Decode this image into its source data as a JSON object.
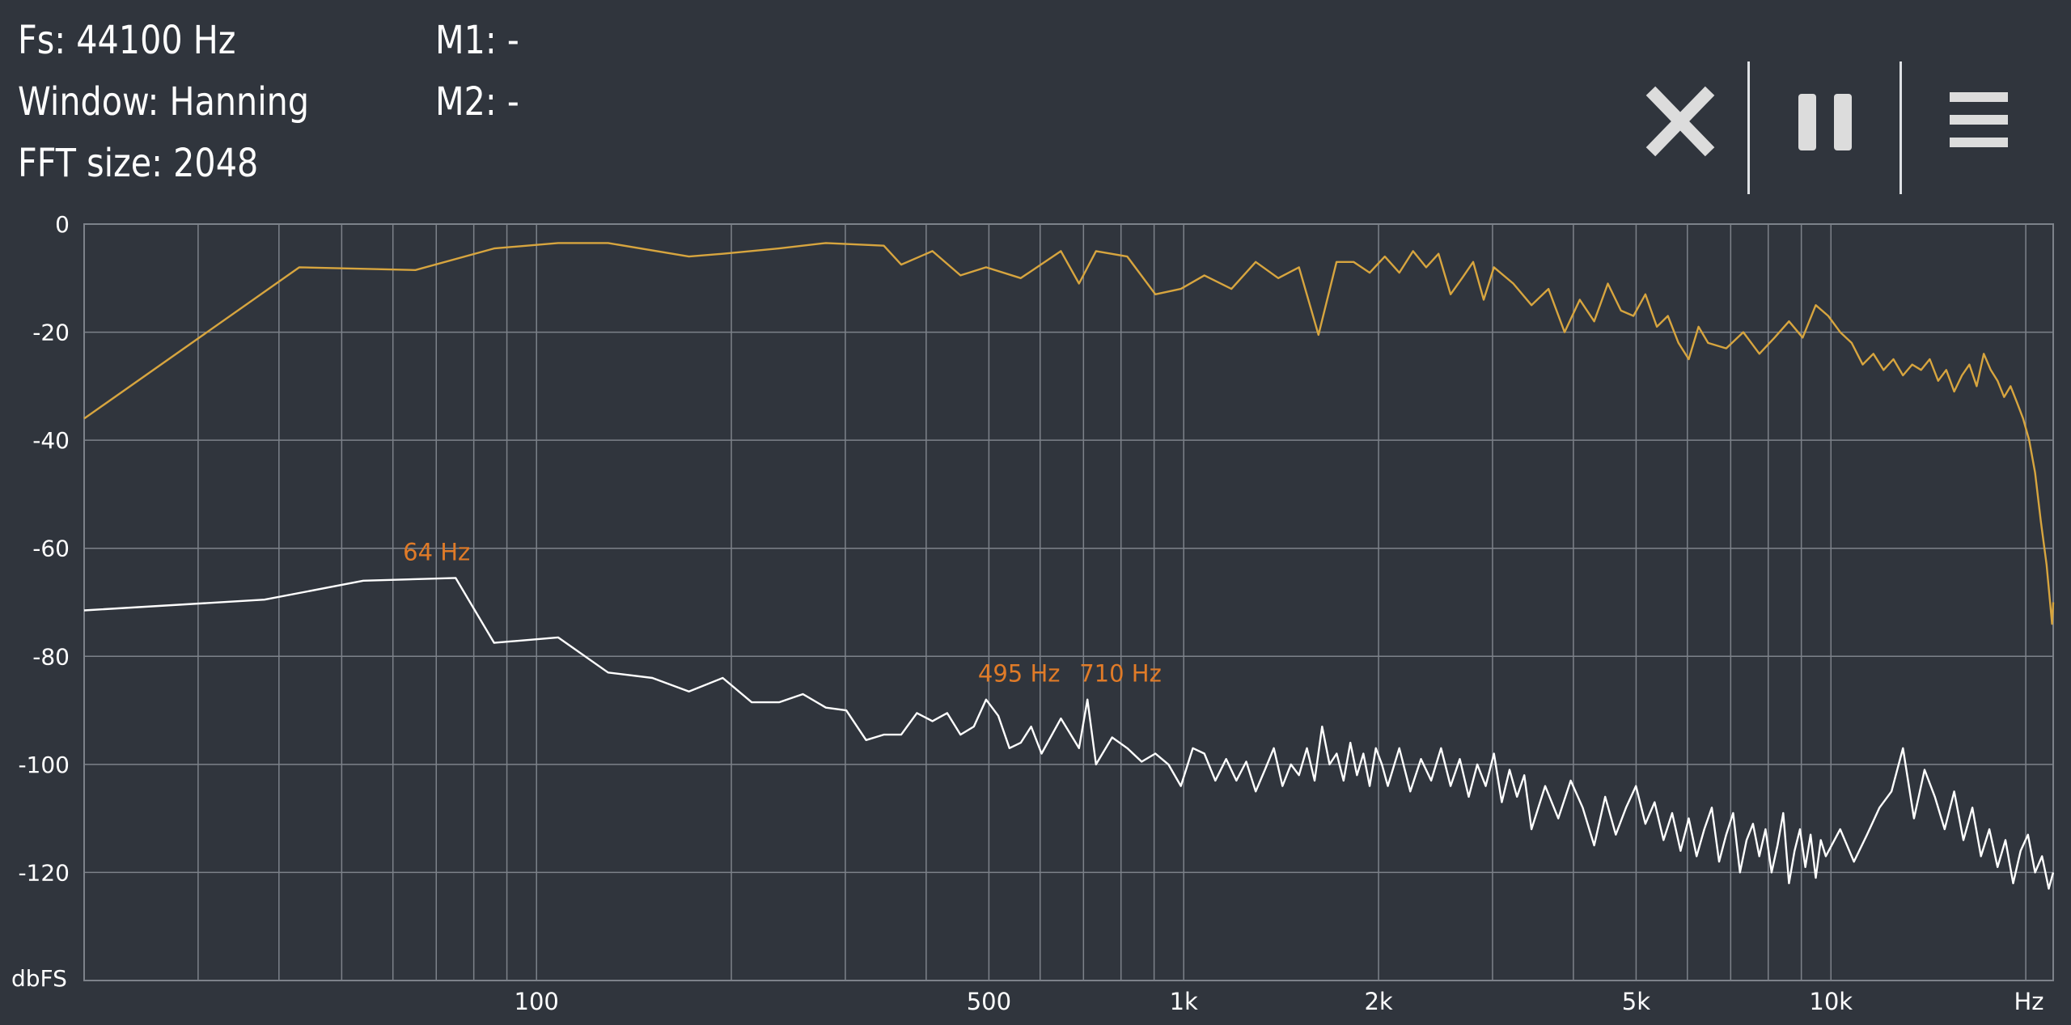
{
  "info": {
    "fs": "Fs: 44100 Hz",
    "window": "Window: Hanning",
    "fft_size": "FFT size: 2048",
    "m1": "M1: -",
    "m2": "M2: -"
  },
  "toolbar": {
    "close_icon": "close-icon",
    "pause_icon": "pause-icon",
    "menu_icon": "menu-icon"
  },
  "colors": {
    "background": "#30353d",
    "grid": "#7d828a",
    "series_spectrum": "#d7a53f",
    "series_noise": "#ffffff",
    "marker_label": "#e07b28",
    "text": "#ffffff"
  },
  "chart_data": {
    "type": "line",
    "x_scale": "log",
    "xlim": [
      20,
      22050
    ],
    "ylim": [
      -140,
      0
    ],
    "ylabel": "dbFS",
    "xlabel": "Hz",
    "y_ticks": [
      0,
      -20,
      -40,
      -60,
      -80,
      -100,
      -120
    ],
    "y_tick_labels": [
      "0",
      "-20",
      "-40",
      "-60",
      "-80",
      "-100",
      "-120"
    ],
    "x_ticks": [
      100,
      500,
      1000,
      2000,
      5000,
      10000
    ],
    "x_tick_labels": [
      "100",
      "500",
      "1k",
      "2k",
      "5k",
      "10k"
    ],
    "x_gridlines": [
      30,
      40,
      50,
      60,
      70,
      80,
      90,
      100,
      200,
      300,
      400,
      500,
      600,
      700,
      800,
      900,
      1000,
      2000,
      3000,
      4000,
      5000,
      6000,
      7000,
      8000,
      9000,
      10000,
      20000
    ],
    "grid": true,
    "series": [
      {
        "values": [
          [
            20,
            -36
          ],
          [
            43,
            -8
          ],
          [
            65,
            -8.5
          ],
          [
            86,
            -4.5
          ],
          [
            108,
            -3.5
          ],
          [
            129,
            -3.5
          ],
          [
            172,
            -6
          ],
          [
            194,
            -5.5
          ],
          [
            237,
            -4.5
          ],
          [
            280,
            -3.5
          ],
          [
            344,
            -4
          ],
          [
            366,
            -7.5
          ],
          [
            409,
            -5
          ],
          [
            452,
            -9.5
          ],
          [
            495,
            -8
          ],
          [
            560,
            -10
          ],
          [
            646,
            -5
          ],
          [
            689,
            -11
          ],
          [
            732,
            -5
          ],
          [
            818,
            -6
          ],
          [
            904,
            -13
          ],
          [
            990,
            -12
          ],
          [
            1076,
            -9.5
          ],
          [
            1185,
            -12
          ],
          [
            1292,
            -7
          ],
          [
            1400,
            -10
          ],
          [
            1507,
            -8
          ],
          [
            1615,
            -20.5
          ],
          [
            1722,
            -7
          ],
          [
            1830,
            -7
          ],
          [
            1938,
            -9
          ],
          [
            2045,
            -6
          ],
          [
            2153,
            -9
          ],
          [
            2261,
            -5
          ],
          [
            2369,
            -8
          ],
          [
            2476,
            -5.5
          ],
          [
            2584,
            -13
          ],
          [
            2692,
            -10
          ],
          [
            2800,
            -7
          ],
          [
            2907,
            -14
          ],
          [
            3015,
            -8
          ],
          [
            3230,
            -11
          ],
          [
            3446,
            -15
          ],
          [
            3661,
            -12
          ],
          [
            3876,
            -20
          ],
          [
            4092,
            -14
          ],
          [
            4307,
            -18
          ],
          [
            4522,
            -11
          ],
          [
            4737,
            -16
          ],
          [
            4953,
            -17
          ],
          [
            5168,
            -13
          ],
          [
            5383,
            -19
          ],
          [
            5599,
            -17
          ],
          [
            5814,
            -22
          ],
          [
            6029,
            -25
          ],
          [
            6244,
            -19
          ],
          [
            6460,
            -22
          ],
          [
            6890,
            -23
          ],
          [
            7321,
            -20
          ],
          [
            7752,
            -24
          ],
          [
            8183,
            -21
          ],
          [
            8613,
            -18
          ],
          [
            9044,
            -21
          ],
          [
            9475,
            -15
          ],
          [
            9905,
            -17
          ],
          [
            10336,
            -20
          ],
          [
            10767,
            -22
          ],
          [
            11197,
            -26
          ],
          [
            11628,
            -24
          ],
          [
            12059,
            -27
          ],
          [
            12489,
            -25
          ],
          [
            12920,
            -28
          ],
          [
            13351,
            -26
          ],
          [
            13781,
            -27
          ],
          [
            14212,
            -25
          ],
          [
            14643,
            -29
          ],
          [
            15073,
            -27
          ],
          [
            15504,
            -31
          ],
          [
            15935,
            -28
          ],
          [
            16365,
            -26
          ],
          [
            16796,
            -30
          ],
          [
            17226,
            -24
          ],
          [
            17657,
            -27
          ],
          [
            18088,
            -29
          ],
          [
            18518,
            -32
          ],
          [
            18949,
            -30
          ],
          [
            19380,
            -33
          ],
          [
            19810,
            -36
          ],
          [
            20241,
            -40
          ],
          [
            20672,
            -46
          ],
          [
            21102,
            -55
          ],
          [
            21533,
            -63
          ],
          [
            21963,
            -74
          ],
          [
            22050,
            -70
          ]
        ]
      },
      {
        "values": [
          [
            20,
            -71.5
          ],
          [
            38,
            -69.5
          ],
          [
            54,
            -66
          ],
          [
            75,
            -65.5
          ],
          [
            86,
            -77.5
          ],
          [
            108,
            -76.5
          ],
          [
            129,
            -83
          ],
          [
            151,
            -84
          ],
          [
            172,
            -86.5
          ],
          [
            194,
            -84
          ],
          [
            215,
            -88.5
          ],
          [
            237,
            -88.5
          ],
          [
            258,
            -87
          ],
          [
            280,
            -89.5
          ],
          [
            301,
            -90
          ],
          [
            323,
            -95.5
          ],
          [
            344,
            -94.5
          ],
          [
            366,
            -94.5
          ],
          [
            387,
            -90.5
          ],
          [
            409,
            -92
          ],
          [
            431,
            -90.5
          ],
          [
            452,
            -94.5
          ],
          [
            474,
            -93
          ],
          [
            495,
            -88
          ],
          [
            517,
            -91
          ],
          [
            538,
            -97
          ],
          [
            560,
            -96
          ],
          [
            581,
            -93
          ],
          [
            603,
            -98
          ],
          [
            646,
            -91.5
          ],
          [
            689,
            -97
          ],
          [
            710,
            -88
          ],
          [
            732,
            -100
          ],
          [
            775,
            -95
          ],
          [
            818,
            -97
          ],
          [
            861,
            -99.5
          ],
          [
            904,
            -98
          ],
          [
            947,
            -100
          ],
          [
            990,
            -104
          ],
          [
            1033,
            -97
          ],
          [
            1076,
            -98
          ],
          [
            1119,
            -103
          ],
          [
            1163,
            -99
          ],
          [
            1206,
            -103
          ],
          [
            1249,
            -99.5
          ],
          [
            1292,
            -105
          ],
          [
            1335,
            -101
          ],
          [
            1378,
            -97
          ],
          [
            1421,
            -104
          ],
          [
            1464,
            -100
          ],
          [
            1507,
            -102
          ],
          [
            1550,
            -97
          ],
          [
            1593,
            -103
          ],
          [
            1636,
            -93
          ],
          [
            1680,
            -100
          ],
          [
            1723,
            -98
          ],
          [
            1766,
            -103
          ],
          [
            1809,
            -96
          ],
          [
            1852,
            -102
          ],
          [
            1895,
            -98
          ],
          [
            1938,
            -104
          ],
          [
            1981,
            -97
          ],
          [
            2024,
            -100
          ],
          [
            2067,
            -104
          ],
          [
            2153,
            -97
          ],
          [
            2239,
            -105
          ],
          [
            2326,
            -99
          ],
          [
            2412,
            -103
          ],
          [
            2498,
            -97
          ],
          [
            2584,
            -104
          ],
          [
            2670,
            -99
          ],
          [
            2756,
            -106
          ],
          [
            2842,
            -100
          ],
          [
            2928,
            -104
          ],
          [
            3015,
            -98
          ],
          [
            3101,
            -107
          ],
          [
            3187,
            -101
          ],
          [
            3273,
            -106
          ],
          [
            3359,
            -102
          ],
          [
            3446,
            -112
          ],
          [
            3618,
            -104
          ],
          [
            3790,
            -110
          ],
          [
            3962,
            -103
          ],
          [
            4135,
            -108
          ],
          [
            4307,
            -115
          ],
          [
            4479,
            -106
          ],
          [
            4651,
            -113
          ],
          [
            4824,
            -108
          ],
          [
            4996,
            -104
          ],
          [
            5168,
            -111
          ],
          [
            5340,
            -107
          ],
          [
            5512,
            -114
          ],
          [
            5684,
            -109
          ],
          [
            5857,
            -116
          ],
          [
            6029,
            -110
          ],
          [
            6201,
            -117
          ],
          [
            6373,
            -112
          ],
          [
            6546,
            -108
          ],
          [
            6718,
            -118
          ],
          [
            6890,
            -113
          ],
          [
            7062,
            -109
          ],
          [
            7235,
            -120
          ],
          [
            7407,
            -114
          ],
          [
            7579,
            -111
          ],
          [
            7751,
            -117
          ],
          [
            7924,
            -112
          ],
          [
            8096,
            -120
          ],
          [
            8268,
            -115
          ],
          [
            8440,
            -109
          ],
          [
            8613,
            -122
          ],
          [
            8785,
            -116
          ],
          [
            8957,
            -112
          ],
          [
            9129,
            -119
          ],
          [
            9302,
            -113
          ],
          [
            9474,
            -121
          ],
          [
            9646,
            -114
          ],
          [
            9818,
            -117
          ],
          [
            10336,
            -112
          ],
          [
            10853,
            -118
          ],
          [
            11370,
            -113
          ],
          [
            11886,
            -108
          ],
          [
            12403,
            -105
          ],
          [
            12920,
            -97
          ],
          [
            13437,
            -110
          ],
          [
            13954,
            -101
          ],
          [
            14471,
            -106
          ],
          [
            14987,
            -112
          ],
          [
            15504,
            -105
          ],
          [
            16021,
            -114
          ],
          [
            16538,
            -108
          ],
          [
            17054,
            -117
          ],
          [
            17571,
            -112
          ],
          [
            18088,
            -119
          ],
          [
            18605,
            -114
          ],
          [
            19122,
            -122
          ],
          [
            19638,
            -116
          ],
          [
            20155,
            -113
          ],
          [
            20672,
            -120
          ],
          [
            21189,
            -117
          ],
          [
            21705,
            -123
          ],
          [
            22050,
            -120
          ]
        ]
      }
    ],
    "annotations": [
      {
        "label": "64 Hz",
        "x": 64,
        "y": -65.5
      },
      {
        "label": "495 Hz",
        "x": 495,
        "y": -88
      },
      {
        "label": "710 Hz",
        "x": 710,
        "y": -88
      }
    ]
  }
}
